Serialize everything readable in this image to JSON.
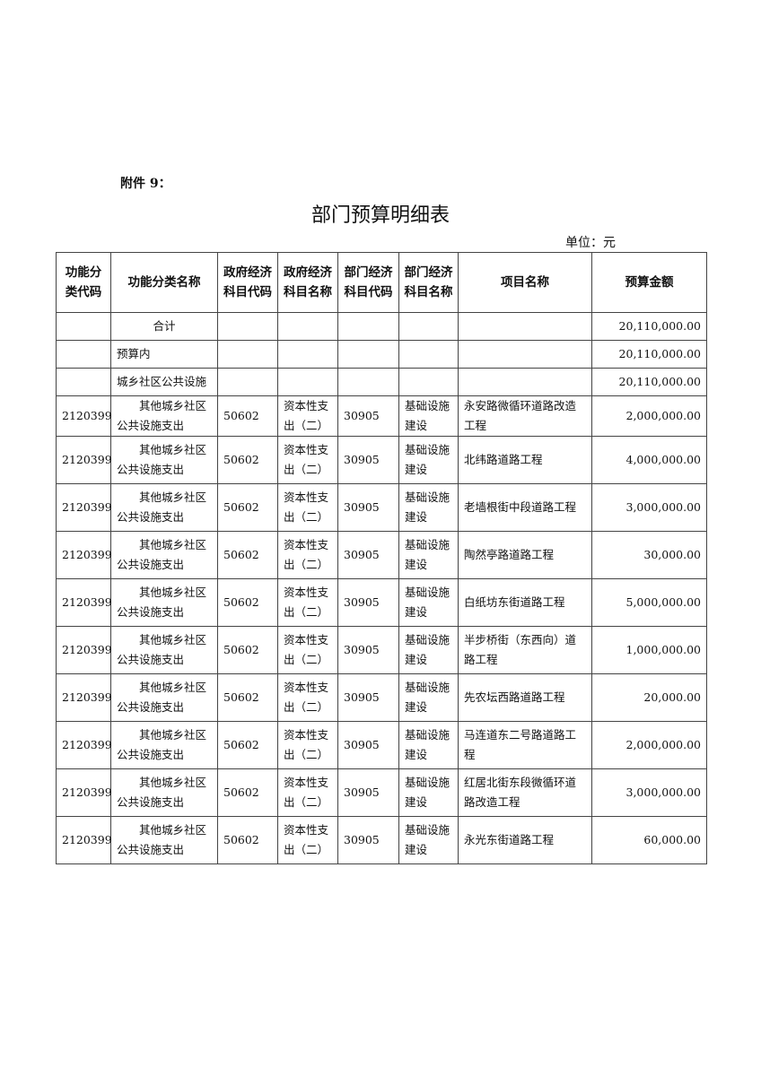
{
  "attachment": "附件 9：",
  "title": "部门预算明细表",
  "unit": "单位：元",
  "headers": [
    "功能分类代码",
    "功能分类名称",
    "政府经济科目代码",
    "政府经济科目名称",
    "部门经济科目代码",
    "部门经济科目名称",
    "项目名称",
    "预算金额"
  ],
  "summary_rows": [
    {
      "label": "合计",
      "amount": "20,110,000.00"
    },
    {
      "label": "预算内",
      "amount": "20,110,000.00"
    },
    {
      "label": "城乡社区公共设施",
      "amount": "20,110,000.00"
    }
  ],
  "rows": [
    {
      "func_code": "2120399",
      "func_name": "其他城乡社区公共设施支出",
      "gov_code": "50602",
      "gov_name": "资本性支出（二）",
      "dept_code": "30905",
      "dept_name": "基础设施建设",
      "project": "永安路微循环道路改造工程",
      "amount": "2,000,000.00"
    },
    {
      "func_code": "2120399",
      "func_name": "其他城乡社区公共设施支出",
      "gov_code": "50602",
      "gov_name": "资本性支出（二）",
      "dept_code": "30905",
      "dept_name": "基础设施建设",
      "project": "北纬路道路工程",
      "amount": "4,000,000.00"
    },
    {
      "func_code": "2120399",
      "func_name": "其他城乡社区公共设施支出",
      "gov_code": "50602",
      "gov_name": "资本性支出（二）",
      "dept_code": "30905",
      "dept_name": "基础设施建设",
      "project": "老墙根街中段道路工程",
      "amount": "3,000,000.00"
    },
    {
      "func_code": "2120399",
      "func_name": "其他城乡社区公共设施支出",
      "gov_code": "50602",
      "gov_name": "资本性支出（二）",
      "dept_code": "30905",
      "dept_name": "基础设施建设",
      "project": "陶然亭路道路工程",
      "amount": "30,000.00"
    },
    {
      "func_code": "2120399",
      "func_name": "其他城乡社区公共设施支出",
      "gov_code": "50602",
      "gov_name": "资本性支出（二）",
      "dept_code": "30905",
      "dept_name": "基础设施建设",
      "project": "白纸坊东街道路工程",
      "amount": "5,000,000.00"
    },
    {
      "func_code": "2120399",
      "func_name": "其他城乡社区公共设施支出",
      "gov_code": "50602",
      "gov_name": "资本性支出（二）",
      "dept_code": "30905",
      "dept_name": "基础设施建设",
      "project": "半步桥街（东西向）道路工程",
      "amount": "1,000,000.00"
    },
    {
      "func_code": "2120399",
      "func_name": "其他城乡社区公共设施支出",
      "gov_code": "50602",
      "gov_name": "资本性支出（二）",
      "dept_code": "30905",
      "dept_name": "基础设施建设",
      "project": "先农坛西路道路工程",
      "amount": "20,000.00"
    },
    {
      "func_code": "2120399",
      "func_name": "其他城乡社区公共设施支出",
      "gov_code": "50602",
      "gov_name": "资本性支出（二）",
      "dept_code": "30905",
      "dept_name": "基础设施建设",
      "project": "马连道东二号路道路工程",
      "amount": "2,000,000.00"
    },
    {
      "func_code": "2120399",
      "func_name": "其他城乡社区公共设施支出",
      "gov_code": "50602",
      "gov_name": "资本性支出（二）",
      "dept_code": "30905",
      "dept_name": "基础设施建设",
      "project": "红居北街东段微循环道路改造工程",
      "amount": "3,000,000.00"
    },
    {
      "func_code": "2120399",
      "func_name": "其他城乡社区公共设施支出",
      "gov_code": "50602",
      "gov_name": "资本性支出（二）",
      "dept_code": "30905",
      "dept_name": "基础设施建设",
      "project": "永光东街道路工程",
      "amount": "60,000.00"
    }
  ]
}
